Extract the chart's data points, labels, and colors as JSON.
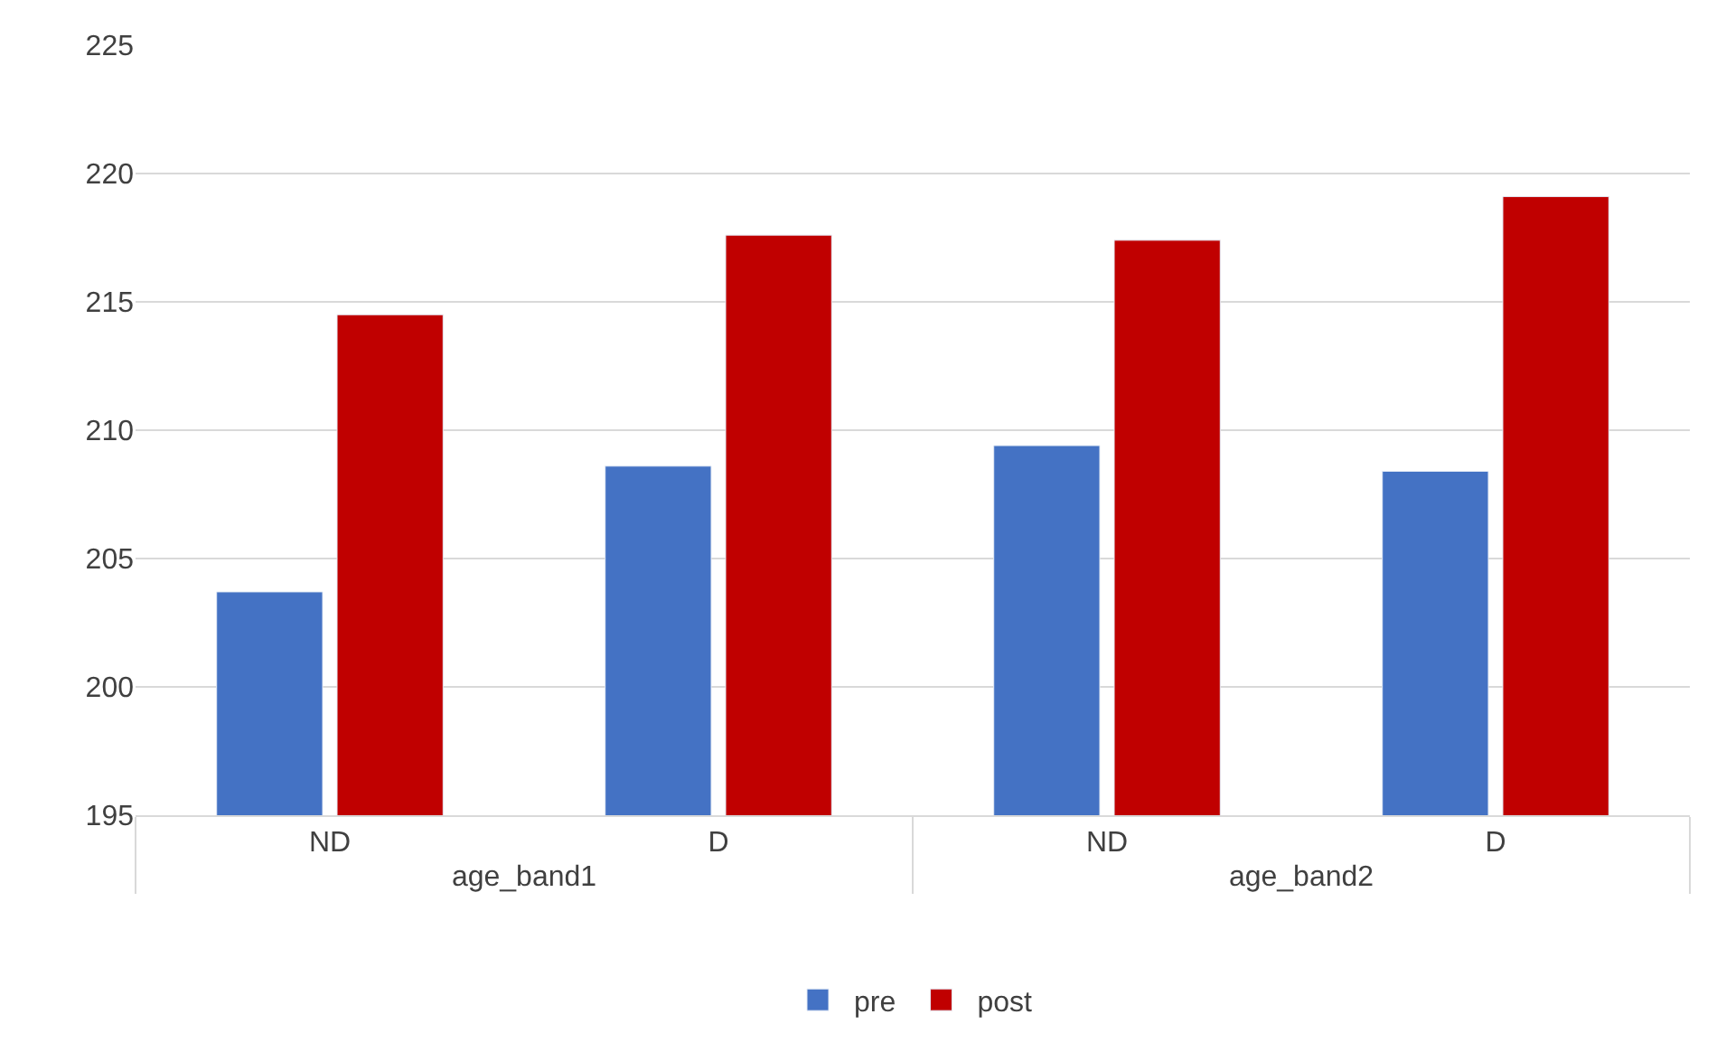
{
  "chart_data": {
    "type": "bar",
    "categories": [
      "ND",
      "D",
      "ND",
      "D"
    ],
    "annotations": [
      "age_band1",
      "age_band2"
    ],
    "series": [
      {
        "name": "pre",
        "color": "#4472c4",
        "values": [
          203.7,
          208.6,
          209.4,
          208.4
        ]
      },
      {
        "name": "post",
        "color": "#c00000",
        "values": [
          214.5,
          217.6,
          217.4,
          219.1
        ]
      }
    ],
    "ylim": [
      195,
      225
    ],
    "yticks": [
      195,
      200,
      205,
      210,
      215,
      220,
      225
    ],
    "grid": "y",
    "legend": "bottom"
  }
}
